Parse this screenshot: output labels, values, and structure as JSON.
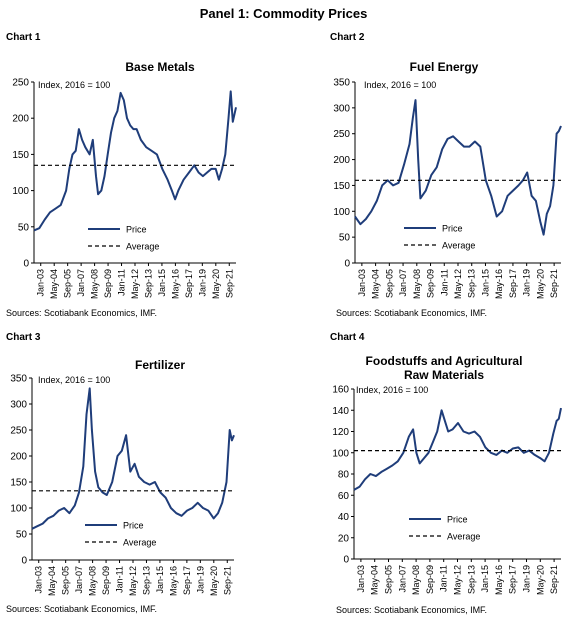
{
  "panel": {
    "title": "Panel 1: Commodity Prices"
  },
  "charts_meta": [
    {
      "number": "Chart 1",
      "title_lines": [
        "Base Metals"
      ],
      "index_note": "Index, 2016 = 100",
      "source": "Sources: Scotiabank Economics, IMF."
    },
    {
      "number": "Chart 2",
      "title_lines": [
        "Fuel Energy"
      ],
      "index_note": "Index, 2016 = 100",
      "source": "Sources: Scotiabank Economics, IMF."
    },
    {
      "number": "Chart 3",
      "title_lines": [
        "Fertilizer"
      ],
      "index_note": "Index, 2016 = 100",
      "source": "Sources: Scotiabank Economics, IMF."
    },
    {
      "number": "Chart 4",
      "title_lines": [
        "Foodstuffs and Agricultural",
        "Raw Materials"
      ],
      "index_note": "Index, 2016 = 100",
      "source": "Sources: Scotiabank Economics, IMF."
    }
  ],
  "styles": {
    "price_color": "#1f3d7a",
    "average_color": "#000000",
    "axis_color": "#000000"
  },
  "chart_data": [
    {
      "type": "line",
      "title": "Base Metals",
      "xticks": [
        "Jan-03",
        "May-04",
        "Sep-05",
        "Jan-07",
        "May-08",
        "Sep-09",
        "Jan-11",
        "May-12",
        "Sep-13",
        "Jan-15",
        "May-16",
        "Sep-17",
        "Jan-19",
        "May-20",
        "Sep-21"
      ],
      "yticks": [
        0,
        50,
        100,
        150,
        200,
        250
      ],
      "ylim": [
        0,
        250
      ],
      "xlim": [
        2003.0,
        2021.9
      ],
      "legend": [
        "Price",
        "Average"
      ],
      "series": [
        {
          "name": "Price",
          "x": [
            2003.0,
            2003.5,
            2004.0,
            2004.5,
            2005.0,
            2005.5,
            2006.0,
            2006.3,
            2006.6,
            2006.9,
            2007.2,
            2007.5,
            2007.8,
            2008.2,
            2008.5,
            2008.8,
            2009.0,
            2009.3,
            2009.6,
            2009.9,
            2010.2,
            2010.5,
            2010.8,
            2011.1,
            2011.4,
            2011.7,
            2012.0,
            2012.3,
            2012.6,
            2013.0,
            2013.5,
            2014.0,
            2014.5,
            2015.0,
            2015.5,
            2015.9,
            2016.2,
            2016.5,
            2017.0,
            2017.5,
            2018.0,
            2018.4,
            2018.8,
            2019.2,
            2019.6,
            2020.0,
            2020.3,
            2020.6,
            2020.9,
            2021.2,
            2021.4,
            2021.6,
            2021.9
          ],
          "values": [
            45,
            48,
            60,
            70,
            75,
            80,
            100,
            130,
            150,
            155,
            185,
            170,
            160,
            150,
            170,
            120,
            95,
            100,
            120,
            150,
            180,
            200,
            210,
            235,
            225,
            200,
            190,
            185,
            185,
            170,
            160,
            155,
            150,
            130,
            115,
            100,
            88,
            100,
            115,
            125,
            135,
            125,
            120,
            125,
            130,
            130,
            115,
            130,
            150,
            200,
            237,
            195,
            215
          ]
        },
        {
          "name": "Average",
          "x": [
            2003.0,
            2021.9
          ],
          "values": [
            135,
            135
          ]
        }
      ]
    },
    {
      "type": "line",
      "title": "Fuel Energy",
      "xticks": [
        "Jan-03",
        "May-04",
        "Sep-05",
        "Jan-07",
        "May-08",
        "Sep-09",
        "Jan-11",
        "May-12",
        "Sep-13",
        "Jan-15",
        "May-16",
        "Sep-17",
        "Jan-19",
        "May-20",
        "Sep-21"
      ],
      "yticks": [
        0,
        50,
        100,
        150,
        200,
        250,
        300,
        350
      ],
      "ylim": [
        0,
        350
      ],
      "xlim": [
        2003.0,
        2021.9
      ],
      "legend": [
        "Price",
        "Average"
      ],
      "series": [
        {
          "name": "Price",
          "x": [
            2003.0,
            2003.5,
            2004.0,
            2004.5,
            2005.0,
            2005.5,
            2006.0,
            2006.5,
            2007.0,
            2007.5,
            2008.0,
            2008.3,
            2008.55,
            2008.8,
            2009.0,
            2009.5,
            2010.0,
            2010.5,
            2011.0,
            2011.5,
            2012.0,
            2012.5,
            2013.0,
            2013.5,
            2014.0,
            2014.5,
            2015.0,
            2015.5,
            2016.0,
            2016.5,
            2017.0,
            2017.5,
            2018.0,
            2018.4,
            2018.8,
            2019.2,
            2019.6,
            2020.0,
            2020.3,
            2020.6,
            2020.9,
            2021.2,
            2021.5,
            2021.7,
            2021.9
          ],
          "values": [
            90,
            75,
            85,
            100,
            120,
            150,
            160,
            150,
            155,
            190,
            230,
            280,
            315,
            200,
            125,
            140,
            170,
            185,
            220,
            240,
            245,
            235,
            225,
            225,
            235,
            225,
            160,
            130,
            90,
            100,
            130,
            140,
            150,
            160,
            175,
            130,
            120,
            80,
            55,
            95,
            110,
            150,
            250,
            255,
            265
          ]
        },
        {
          "name": "Average",
          "x": [
            2003.0,
            2021.9
          ],
          "values": [
            160,
            160
          ]
        }
      ]
    },
    {
      "type": "line",
      "title": "Fertilizer",
      "xticks": [
        "Jan-03",
        "May-04",
        "Sep-05",
        "Jan-07",
        "May-08",
        "Sep-09",
        "Jan-11",
        "May-12",
        "Sep-13",
        "Jan-15",
        "May-16",
        "Sep-17",
        "Jan-19",
        "May-20",
        "Sep-21"
      ],
      "yticks": [
        0,
        50,
        100,
        150,
        200,
        250,
        300,
        350
      ],
      "ylim": [
        0,
        350
      ],
      "xlim": [
        2003.0,
        2021.9
      ],
      "legend": [
        "Price",
        "Average"
      ],
      "series": [
        {
          "name": "Price",
          "x": [
            2003.0,
            2003.5,
            2004.0,
            2004.5,
            2005.0,
            2005.5,
            2006.0,
            2006.5,
            2007.0,
            2007.4,
            2007.8,
            2008.1,
            2008.4,
            2008.6,
            2008.9,
            2009.2,
            2009.6,
            2010.0,
            2010.5,
            2011.0,
            2011.4,
            2011.8,
            2012.2,
            2012.6,
            2013.0,
            2013.5,
            2014.0,
            2014.5,
            2015.0,
            2015.5,
            2016.0,
            2016.5,
            2017.0,
            2017.5,
            2018.0,
            2018.5,
            2019.0,
            2019.5,
            2020.0,
            2020.4,
            2020.8,
            2021.2,
            2021.5,
            2021.7,
            2021.9
          ],
          "values": [
            60,
            65,
            70,
            80,
            85,
            95,
            100,
            90,
            105,
            130,
            180,
            280,
            330,
            250,
            170,
            140,
            130,
            125,
            150,
            200,
            210,
            240,
            170,
            185,
            160,
            150,
            145,
            150,
            130,
            120,
            100,
            90,
            85,
            95,
            100,
            110,
            100,
            95,
            80,
            90,
            110,
            150,
            250,
            230,
            240
          ]
        },
        {
          "name": "Average",
          "x": [
            2003.0,
            2021.9
          ],
          "values": [
            133,
            133
          ]
        }
      ]
    },
    {
      "type": "line",
      "title": "Foodstuffs and Agricultural Raw Materials",
      "xticks": [
        "Jan-03",
        "May-04",
        "Sep-05",
        "Jan-07",
        "May-08",
        "Sep-09",
        "Jan-11",
        "May-12",
        "Sep-13",
        "Jan-15",
        "May-16",
        "Sep-17",
        "Jan-19",
        "May-20",
        "Sep-21"
      ],
      "yticks": [
        0,
        20,
        40,
        60,
        80,
        100,
        120,
        140,
        160
      ],
      "ylim": [
        0,
        160
      ],
      "xlim": [
        2003.0,
        2021.9
      ],
      "legend": [
        "Price",
        "Average"
      ],
      "series": [
        {
          "name": "Price",
          "x": [
            2003.0,
            2003.5,
            2004.0,
            2004.5,
            2005.0,
            2005.5,
            2006.0,
            2006.5,
            2007.0,
            2007.5,
            2008.0,
            2008.4,
            2008.7,
            2009.0,
            2009.4,
            2009.8,
            2010.2,
            2010.6,
            2011.0,
            2011.3,
            2011.6,
            2012.0,
            2012.5,
            2013.0,
            2013.5,
            2014.0,
            2014.5,
            2015.0,
            2015.5,
            2016.0,
            2016.5,
            2017.0,
            2017.5,
            2018.0,
            2018.5,
            2019.0,
            2019.5,
            2020.0,
            2020.4,
            2020.8,
            2021.2,
            2021.5,
            2021.7,
            2021.9
          ],
          "values": [
            65,
            68,
            75,
            80,
            78,
            82,
            85,
            88,
            92,
            100,
            115,
            122,
            100,
            90,
            95,
            100,
            110,
            120,
            140,
            130,
            120,
            122,
            128,
            120,
            118,
            120,
            115,
            105,
            100,
            98,
            102,
            100,
            104,
            105,
            100,
            102,
            98,
            95,
            92,
            100,
            118,
            130,
            132,
            142
          ]
        },
        {
          "name": "Average",
          "x": [
            2003.0,
            2021.9
          ],
          "values": [
            102,
            102
          ]
        }
      ]
    }
  ]
}
